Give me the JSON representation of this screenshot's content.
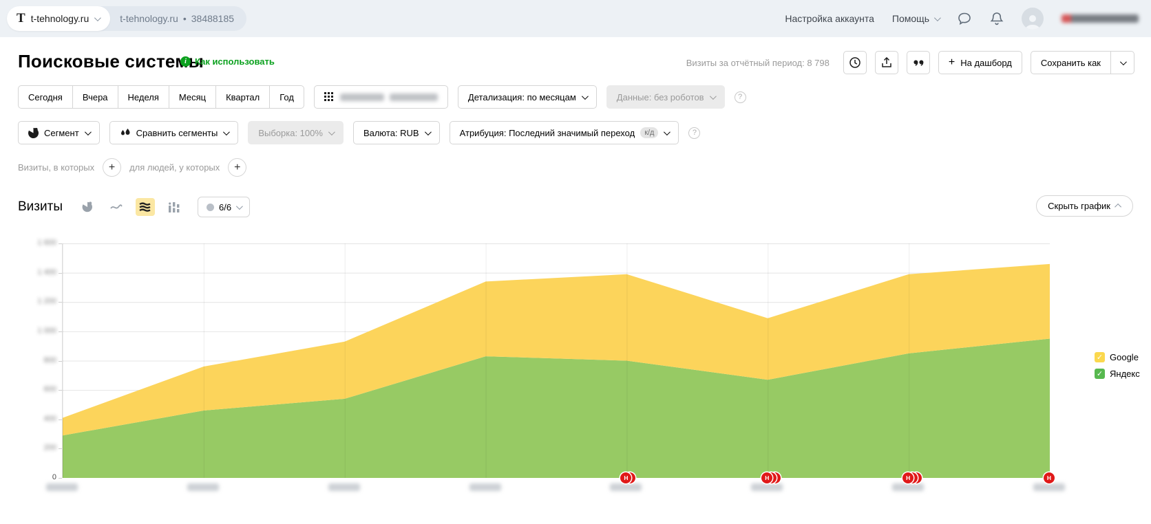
{
  "topbar": {
    "logo_letter": "T",
    "counter_name": "t-tehnology.ru",
    "counter_breadcrumb": "t-tehnology.ru",
    "separator": "•",
    "counter_id": "38488185",
    "account_settings": "Настройка аккаунта",
    "help": "Помощь"
  },
  "header": {
    "title": "Поисковые системы",
    "how_to_use": "Как использовать",
    "visits_total": "Визиты за отчётный период: 8 798",
    "dashboard_plus": "+",
    "dashboard_label": "На дашборд",
    "save_as_label": "Сохранить как"
  },
  "filters": {
    "period_tabs": [
      "Сегодня",
      "Вчера",
      "Неделя",
      "Месяц",
      "Квартал",
      "Год"
    ],
    "detail_label": "Детализация: по месяцам",
    "data_label": "Данные: без роботов",
    "segment_label": "Сегмент",
    "compare_label": "Сравнить сегменты",
    "sampling_label": "Выборка: 100%",
    "currency_label": "Валюта: RUB",
    "attribution_label": "Атрибуция: Последний значимый переход",
    "attribution_badge": "к/д",
    "question_mark": "?",
    "visits_in_which": "Визиты, в которых",
    "for_people": "для людей, у которых",
    "plus": "+"
  },
  "chart_section": {
    "title": "Визиты",
    "metric_selector": "6/6",
    "hide_chart": "Скрыть график"
  },
  "chart_data": {
    "type": "area",
    "stacked": true,
    "title": "Визиты",
    "x_count": 8,
    "x_tick_labels_blurred": true,
    "ylim": [
      0,
      1600
    ],
    "y_ticks": [
      0,
      200,
      400,
      600,
      800,
      1000,
      1200,
      1400,
      1600
    ],
    "y_tick_labels_blurred_except_zero": true,
    "zero_label": "0",
    "grid": true,
    "legend_position": "right",
    "series": [
      {
        "name": "Яндекс",
        "color": "#97ca64",
        "legend_color": "#57b84f",
        "values": [
          290,
          460,
          540,
          830,
          800,
          670,
          850,
          950
        ]
      },
      {
        "name": "Google",
        "color": "#fcd45b",
        "legend_color": "#fbd84e",
        "values": [
          120,
          300,
          390,
          510,
          590,
          420,
          540,
          510
        ]
      }
    ],
    "markers": [
      {
        "x_index": 4,
        "label": "H",
        "count": 2,
        "color": "#e01919"
      },
      {
        "x_index": 5,
        "label": "H",
        "count": 3,
        "color": "#e01919"
      },
      {
        "x_index": 6,
        "label": "H",
        "count": 3,
        "color": "#e01919"
      },
      {
        "x_index": 7,
        "label": "H",
        "count": 1,
        "color": "#e01919"
      }
    ],
    "legend_check_glyph": "✓"
  }
}
